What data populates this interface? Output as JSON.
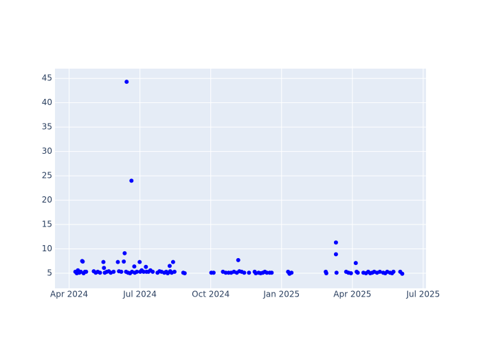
{
  "chart_data": {
    "type": "scatter",
    "x": [
      2024.272,
      2024.277,
      2024.281,
      2024.286,
      2024.291,
      2024.296,
      2024.298,
      2024.301,
      2024.306,
      2024.31,
      2024.337,
      2024.344,
      2024.351,
      2024.359,
      2024.371,
      2024.373,
      2024.376,
      2024.383,
      2024.39,
      2024.397,
      2024.407,
      2024.422,
      2024.426,
      2024.434,
      2024.443,
      2024.446,
      2024.451,
      2024.453,
      2024.458,
      2024.465,
      2024.47,
      2024.472,
      2024.48,
      2024.482,
      2024.489,
      2024.499,
      2024.501,
      2024.506,
      2024.513,
      2024.521,
      2024.523,
      2024.53,
      2024.537,
      2024.545,
      2024.562,
      2024.569,
      2024.576,
      2024.586,
      2024.593,
      2024.598,
      2024.605,
      2024.607,
      2024.612,
      2024.617,
      2024.622,
      2024.653,
      2024.658,
      2024.752,
      2024.76,
      2024.793,
      2024.803,
      2024.813,
      2024.822,
      2024.832,
      2024.842,
      2024.847,
      2024.851,
      2024.859,
      2024.868,
      2024.885,
      2024.905,
      2024.909,
      2024.919,
      2024.926,
      2024.934,
      2024.941,
      2024.948,
      2024.958,
      2024.965,
      2025.023,
      2025.028,
      2025.035,
      2025.156,
      2025.158,
      2025.192,
      2025.192,
      2025.194,
      2025.228,
      2025.236,
      2025.245,
      2025.262,
      2025.265,
      2025.269,
      2025.289,
      2025.298,
      2025.306,
      2025.313,
      2025.32,
      2025.327,
      2025.337,
      2025.347,
      2025.359,
      2025.366,
      2025.373,
      2025.383,
      2025.39,
      2025.395,
      2025.419,
      2025.426
    ],
    "values": [
      5.3,
      5.0,
      5.6,
      5.1,
      5.3,
      7.5,
      7.4,
      5.0,
      5.3,
      5.3,
      5.4,
      5.1,
      5.3,
      5.1,
      7.3,
      6.1,
      5.1,
      5.3,
      5.4,
      5.1,
      5.3,
      7.3,
      5.4,
      5.3,
      7.4,
      9.1,
      5.3,
      44.3,
      5.1,
      5.0,
      24.0,
      5.3,
      6.4,
      5.1,
      5.3,
      7.3,
      5.3,
      5.6,
      5.3,
      6.3,
      5.3,
      5.3,
      5.6,
      5.3,
      5.1,
      5.4,
      5.3,
      5.1,
      5.3,
      5.0,
      6.5,
      5.4,
      5.1,
      7.3,
      5.3,
      5.1,
      5.0,
      5.1,
      5.1,
      5.3,
      5.1,
      5.1,
      5.1,
      5.3,
      5.1,
      7.7,
      5.4,
      5.3,
      5.1,
      5.1,
      5.3,
      5.0,
      5.1,
      5.0,
      5.1,
      5.3,
      5.1,
      5.1,
      5.1,
      5.3,
      4.9,
      5.1,
      5.3,
      5.0,
      11.3,
      8.9,
      5.1,
      5.3,
      5.1,
      5.0,
      7.1,
      5.3,
      5.1,
      5.1,
      5.0,
      5.3,
      5.0,
      5.1,
      5.3,
      5.1,
      5.3,
      5.1,
      5.0,
      5.3,
      5.1,
      5.0,
      5.3,
      5.3,
      4.9
    ],
    "color": "#0000ff",
    "xlim": [
      2024.2,
      2025.51
    ],
    "xticks": [
      {
        "value": 2024.25,
        "label": "Apr 2024"
      },
      {
        "value": 2024.5,
        "label": "Jul 2024"
      },
      {
        "value": 2024.75,
        "label": "Oct 2024"
      },
      {
        "value": 2025.0,
        "label": "Jan 2025"
      },
      {
        "value": 2025.25,
        "label": "Apr 2025"
      },
      {
        "value": 2025.5,
        "label": "Jul 2025"
      }
    ],
    "ylim": [
      1.9,
      47
    ],
    "yticks": [
      5,
      10,
      15,
      20,
      25,
      30,
      35,
      40,
      45
    ],
    "grid": true
  }
}
